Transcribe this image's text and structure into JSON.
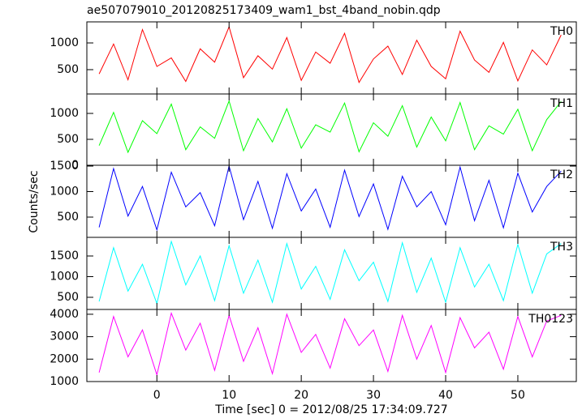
{
  "chart_data": [
    {
      "type": "line",
      "title": "ae507079010_20120825173409_wam1_bst_4band_nobin.qdp",
      "annotation": "TH0",
      "color": "#ff0000",
      "x": [
        -8,
        -6,
        -4,
        -2,
        0,
        2,
        4,
        6,
        8,
        10,
        12,
        14,
        16,
        18,
        20,
        22,
        24,
        26,
        28,
        30,
        32,
        34,
        36,
        38,
        40,
        42,
        44,
        46,
        48,
        50,
        52,
        54,
        56
      ],
      "values": [
        420,
        980,
        310,
        1250,
        560,
        720,
        280,
        890,
        640,
        1300,
        350,
        760,
        510,
        1100,
        300,
        830,
        620,
        1180,
        260,
        700,
        940,
        410,
        1050,
        560,
        330,
        1220,
        680,
        450,
        1010,
        290,
        870,
        590,
        1150
      ],
      "xlim": [
        -9.7,
        58.1
      ],
      "ylim": [
        45,
        1394
      ],
      "yticks": [
        500,
        1000
      ]
    },
    {
      "type": "line",
      "annotation": "TH1",
      "color": "#00ff00",
      "x": [
        -8,
        -6,
        -4,
        -2,
        0,
        2,
        4,
        6,
        8,
        10,
        12,
        14,
        16,
        18,
        20,
        22,
        24,
        26,
        28,
        30,
        32,
        34,
        36,
        38,
        40,
        42,
        44,
        46,
        48,
        50,
        52,
        54,
        56
      ],
      "values": [
        380,
        1020,
        250,
        860,
        610,
        1180,
        300,
        740,
        520,
        1240,
        280,
        900,
        450,
        1090,
        330,
        780,
        640,
        1200,
        260,
        820,
        560,
        1150,
        350,
        930,
        470,
        1210,
        300,
        760,
        600,
        1080,
        280,
        880,
        1230
      ],
      "xlim": [
        -9.7,
        58.1
      ],
      "ylim": [
        0,
        1375
      ],
      "yticks": [
        0,
        500,
        1000
      ]
    },
    {
      "type": "line",
      "annotation": "TH2",
      "ylabel": "Counts/sec",
      "color": "#0000ff",
      "x": [
        -8,
        -6,
        -4,
        -2,
        0,
        2,
        4,
        6,
        8,
        10,
        12,
        14,
        16,
        18,
        20,
        22,
        24,
        26,
        28,
        30,
        32,
        34,
        36,
        38,
        40,
        42,
        44,
        46,
        48,
        50,
        52,
        54,
        56
      ],
      "values": [
        300,
        1450,
        520,
        1100,
        250,
        1380,
        700,
        980,
        330,
        1500,
        450,
        1200,
        280,
        1350,
        620,
        1050,
        300,
        1420,
        510,
        1150,
        260,
        1300,
        700,
        1000,
        350,
        1480,
        430,
        1220,
        290,
        1360,
        600,
        1100,
        1400
      ],
      "xlim": [
        -9.7,
        58.1
      ],
      "ylim": [
        103,
        1516
      ],
      "yticks": [
        500,
        1000,
        1500
      ]
    },
    {
      "type": "line",
      "annotation": "TH3",
      "color": "#00ffff",
      "x": [
        -8,
        -6,
        -4,
        -2,
        0,
        2,
        4,
        6,
        8,
        10,
        12,
        14,
        16,
        18,
        20,
        22,
        24,
        26,
        28,
        30,
        32,
        34,
        36,
        38,
        40,
        42,
        44,
        46,
        48,
        50,
        52,
        54,
        56
      ],
      "values": [
        400,
        1700,
        650,
        1300,
        350,
        1850,
        800,
        1500,
        420,
        1750,
        600,
        1400,
        380,
        1800,
        700,
        1250,
        450,
        1650,
        900,
        1350,
        400,
        1820,
        620,
        1450,
        380,
        1700,
        750,
        1300,
        420,
        1780,
        600,
        1550,
        1800
      ],
      "xlim": [
        -9.7,
        58.1
      ],
      "ylim": [
        206,
        1951
      ],
      "yticks": [
        500,
        1000,
        1500
      ]
    },
    {
      "type": "line",
      "annotation": "TH0123",
      "xlabel": "Time [sec] 0 = 2012/08/25 17:34:09.727",
      "color": "#ff00ff",
      "x": [
        -8,
        -6,
        -4,
        -2,
        0,
        2,
        4,
        6,
        8,
        10,
        12,
        14,
        16,
        18,
        20,
        22,
        24,
        26,
        28,
        30,
        32,
        34,
        36,
        38,
        40,
        42,
        44,
        46,
        48,
        50,
        52,
        54,
        56
      ],
      "values": [
        1400,
        3900,
        2100,
        3300,
        1300,
        4050,
        2400,
        3600,
        1500,
        3950,
        1900,
        3400,
        1350,
        4000,
        2300,
        3100,
        1600,
        3800,
        2600,
        3300,
        1450,
        3950,
        2000,
        3500,
        1400,
        3850,
        2500,
        3200,
        1550,
        3900,
        2100,
        3700,
        3950
      ],
      "xlim": [
        -9.7,
        58.1
      ],
      "ylim": [
        1000,
        4214
      ],
      "yticks": [
        1000,
        2000,
        3000,
        4000
      ],
      "xticks": [
        0,
        10,
        20,
        30,
        40,
        50
      ]
    }
  ]
}
